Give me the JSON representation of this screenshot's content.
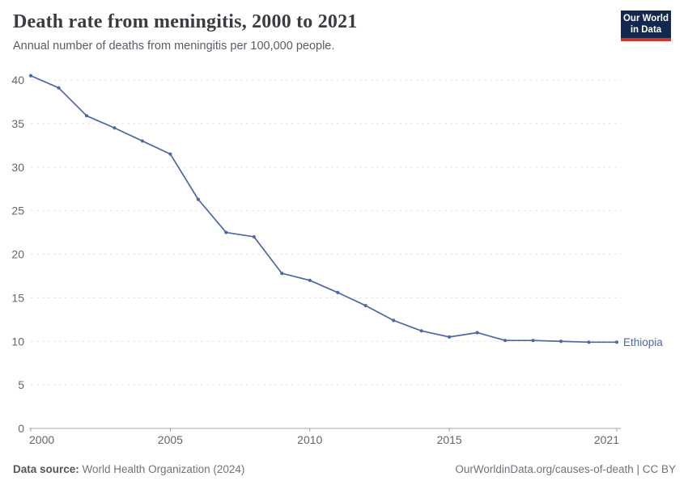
{
  "header": {
    "title": "Death rate from meningitis, 2000 to 2021",
    "subtitle": "Annual number of deaths from meningitis per 100,000 people.",
    "logo": {
      "line1": "Our World",
      "line2": "in Data",
      "bg_color": "#12294d",
      "accent_color": "#d0342c"
    }
  },
  "chart_data": {
    "type": "line",
    "title": "Death rate from meningitis, 2000 to 2021",
    "subtitle": "Annual number of deaths from meningitis per 100,000 people.",
    "xlabel": "",
    "ylabel": "",
    "xlim": [
      2000,
      2021
    ],
    "ylim": [
      0,
      41
    ],
    "x_ticks": [
      2000,
      2005,
      2010,
      2015,
      2021
    ],
    "y_ticks": [
      0,
      5,
      10,
      15,
      20,
      25,
      30,
      35,
      40
    ],
    "grid": "horizontal-dashed",
    "legend_position": "end-of-line-label",
    "x": [
      2000,
      2001,
      2002,
      2003,
      2004,
      2005,
      2006,
      2007,
      2008,
      2009,
      2010,
      2011,
      2012,
      2013,
      2014,
      2015,
      2016,
      2017,
      2018,
      2019,
      2020,
      2021
    ],
    "series": [
      {
        "name": "Ethiopia",
        "color": "#4c69a5",
        "values": [
          40.5,
          39.1,
          35.9,
          34.5,
          33.0,
          31.5,
          26.3,
          22.5,
          22.0,
          17.8,
          17.0,
          15.6,
          14.1,
          12.4,
          11.2,
          10.5,
          11.0,
          10.1,
          10.1,
          10.0,
          9.9,
          9.9
        ]
      }
    ],
    "colors": {
      "gridline": "#e3e3e3",
      "axis": "#a5a5a5",
      "tick_label": "#666666"
    }
  },
  "footer": {
    "datasource_label": "Data source:",
    "datasource_value": " World Health Organization (2024)",
    "attribution": "OurWorldinData.org/causes-of-death | CC BY"
  }
}
